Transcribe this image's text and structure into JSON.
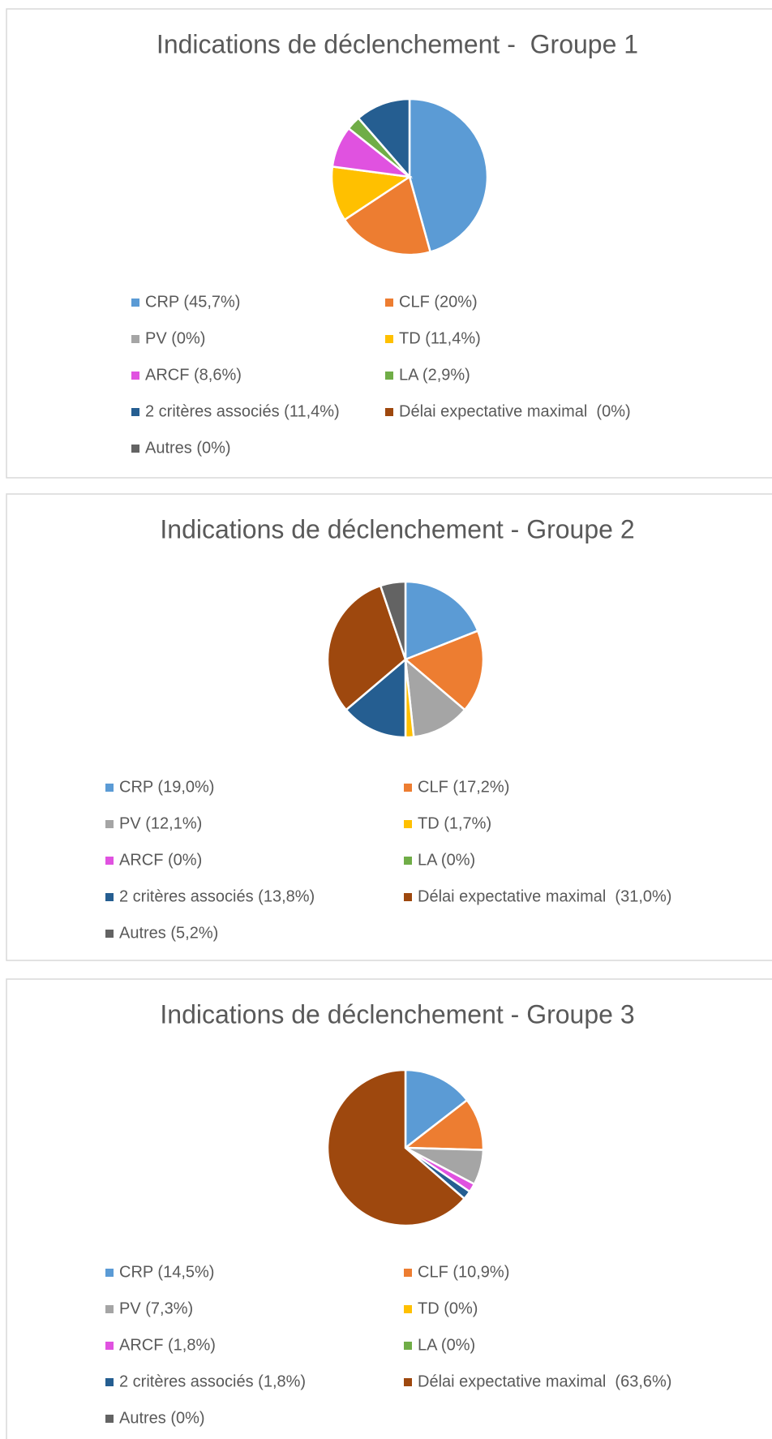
{
  "chart_data": [
    {
      "type": "pie",
      "title": "Indications de déclenchement -  Groupe 1",
      "categories": [
        "CRP (45,7%)",
        "CLF (20%)",
        "PV (0%)",
        "TD (11,4%)",
        "ARCF (8,6%)",
        "LA (2,9%)",
        "2 critères associés (11,4%)",
        "Délai expectative maximal  (0%)",
        "Autres (0%)"
      ],
      "values": [
        45.7,
        20,
        0,
        11.4,
        8.6,
        2.9,
        11.4,
        0,
        0
      ],
      "colors": [
        "#5b9bd5",
        "#ed7d31",
        "#a5a5a5",
        "#ffc000",
        "#e052e0",
        "#70ad47",
        "#255e91",
        "#9e480e",
        "#636363"
      ]
    },
    {
      "type": "pie",
      "title": "Indications de déclenchement - Groupe 2",
      "categories": [
        "CRP (19,0%)",
        "CLF (17,2%)",
        "PV (12,1%)",
        "TD (1,7%)",
        "ARCF (0%)",
        "LA (0%)",
        "2 critères associés (13,8%)",
        "Délai expectative maximal  (31,0%)",
        "Autres (5,2%)"
      ],
      "values": [
        19.0,
        17.2,
        12.1,
        1.7,
        0,
        0,
        13.8,
        31.0,
        5.2
      ],
      "colors": [
        "#5b9bd5",
        "#ed7d31",
        "#a5a5a5",
        "#ffc000",
        "#e052e0",
        "#70ad47",
        "#255e91",
        "#9e480e",
        "#636363"
      ]
    },
    {
      "type": "pie",
      "title": "Indications de déclenchement - Groupe 3",
      "categories": [
        "CRP (14,5%)",
        "CLF (10,9%)",
        "PV (7,3%)",
        "TD (0%)",
        "ARCF (1,8%)",
        "LA (0%)",
        "2 critères associés (1,8%)",
        "Délai expectative maximal  (63,6%)",
        "Autres (0%)"
      ],
      "values": [
        14.5,
        10.9,
        7.3,
        0,
        1.8,
        0,
        1.8,
        63.6,
        0
      ],
      "colors": [
        "#5b9bd5",
        "#ed7d31",
        "#a5a5a5",
        "#ffc000",
        "#e052e0",
        "#70ad47",
        "#255e91",
        "#9e480e",
        "#636363"
      ]
    }
  ]
}
